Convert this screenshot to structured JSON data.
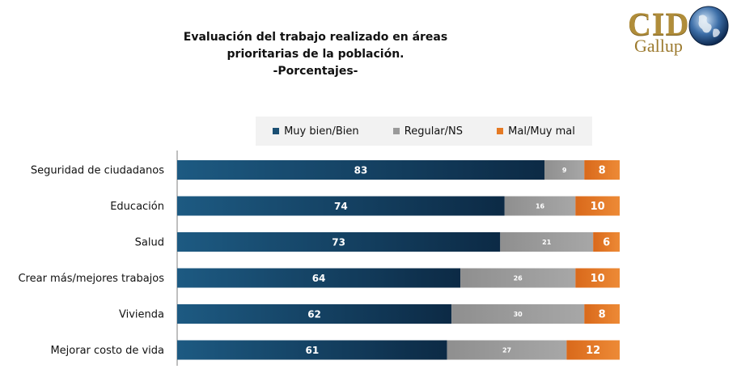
{
  "title_lines": [
    "Evaluación del trabajo realizado en áreas",
    "prioritarias de la población.",
    "-Porcentajes-"
  ],
  "logo": {
    "top": "CID",
    "bottom": "Gallup"
  },
  "colors": {
    "muy_bien": "#1b4f73",
    "regular": "#9a9a9a",
    "mal": "#e57a24"
  },
  "chart_data": {
    "type": "bar",
    "orientation": "horizontal",
    "stacked": true,
    "title": "Evaluación del trabajo realizado en áreas prioritarias de la población. -Porcentajes-",
    "categories": [
      "Seguridad de ciudadanos",
      "Educación",
      "Salud",
      "Crear más/mejores trabajos",
      "Vivienda",
      "Mejorar costo de vida"
    ],
    "series": [
      {
        "name": "Muy bien/Bien",
        "values": [
          83,
          74,
          73,
          64,
          62,
          61
        ]
      },
      {
        "name": "Regular/NS",
        "values": [
          9,
          16,
          21,
          26,
          30,
          27
        ]
      },
      {
        "name": "Mal/Muy mal",
        "values": [
          8,
          10,
          6,
          10,
          8,
          12
        ]
      }
    ],
    "legend_position": "top",
    "grid": false,
    "xlim": [
      0,
      100
    ]
  }
}
